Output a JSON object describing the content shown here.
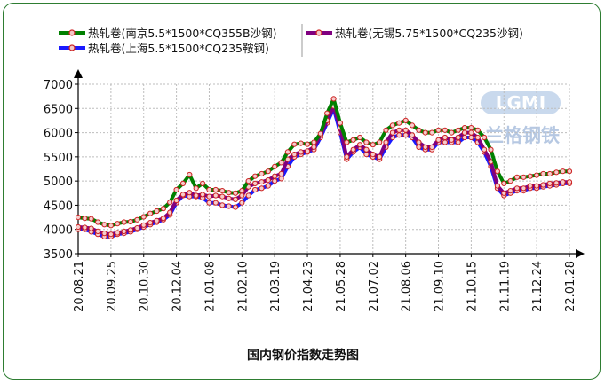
{
  "chart_data": {
    "type": "line",
    "title": "国内钢价指数走势图",
    "xlabel": "",
    "ylabel": "",
    "ylim": [
      3500,
      7000
    ],
    "yticks": [
      3500,
      4000,
      4500,
      5000,
      5500,
      6000,
      6500,
      7000
    ],
    "x_tick_labels": [
      "20.08.21",
      "20.09.25",
      "20.10.30",
      "20.12.04",
      "21.01.08",
      "21.02.10",
      "21.03.19",
      "21.04.23",
      "21.05.28",
      "21.07.02",
      "21.08.06",
      "21.09.10",
      "21.10.15",
      "21.11.19",
      "21.12.24",
      "22.01.28"
    ],
    "x_tick_index": [
      0,
      5,
      10,
      15,
      20,
      25,
      30,
      35,
      40,
      45,
      50,
      55,
      60,
      65,
      70,
      75
    ],
    "grid": true,
    "legend_position": "top",
    "series": [
      {
        "name": "热轧卷(南京5.5*1500*CQ355B沙钢)",
        "color": "#008000",
        "values": [
          4250,
          4230,
          4220,
          4150,
          4100,
          4080,
          4120,
          4150,
          4160,
          4200,
          4260,
          4330,
          4380,
          4430,
          4560,
          4820,
          4950,
          5130,
          4850,
          4950,
          4820,
          4820,
          4800,
          4760,
          4750,
          4800,
          5000,
          5100,
          5150,
          5200,
          5300,
          5380,
          5600,
          5760,
          5780,
          5760,
          5800,
          5980,
          6400,
          6700,
          6200,
          5800,
          5850,
          5900,
          5800,
          5750,
          5800,
          6050,
          6150,
          6200,
          6250,
          6150,
          6050,
          6000,
          6000,
          6050,
          6050,
          6000,
          6050,
          6100,
          6100,
          6050,
          5900,
          5650,
          5200,
          4950,
          5000,
          5080,
          5080,
          5100,
          5120,
          5150,
          5150,
          5180,
          5200,
          5200
        ]
      },
      {
        "name": "热轧卷(上海5.5*1500*CQ235鞍钢)",
        "color": "#1a1aff",
        "values": [
          4000,
          4000,
          3950,
          3900,
          3850,
          3850,
          3900,
          3920,
          3950,
          4000,
          4050,
          4100,
          4150,
          4200,
          4300,
          4550,
          4700,
          4680,
          4680,
          4650,
          4550,
          4550,
          4500,
          4480,
          4460,
          4550,
          4700,
          4820,
          4850,
          4900,
          5000,
          5050,
          5300,
          5500,
          5550,
          5600,
          5650,
          5900,
          6200,
          6500,
          6000,
          5450,
          5600,
          5700,
          5550,
          5500,
          5450,
          5700,
          5900,
          5950,
          5950,
          5900,
          5700,
          5650,
          5650,
          5800,
          5800,
          5800,
          5800,
          5900,
          5900,
          5800,
          5600,
          5300,
          4850,
          4700,
          4750,
          4800,
          4800,
          4850,
          4850,
          4880,
          4900,
          4920,
          4950,
          4950
        ]
      },
      {
        "name": "热轧卷(无锡5.75*1500*CQ235沙钢)",
        "color": "#800080",
        "values": [
          4050,
          4040,
          4020,
          3960,
          3920,
          3900,
          3930,
          3960,
          3990,
          4030,
          4090,
          4140,
          4180,
          4230,
          4350,
          4600,
          4720,
          4760,
          4700,
          4720,
          4680,
          4700,
          4680,
          4640,
          4620,
          4700,
          4880,
          4950,
          4980,
          5020,
          5100,
          5150,
          5450,
          5550,
          5600,
          5620,
          5700,
          5950,
          6250,
          6550,
          6100,
          5500,
          5650,
          5750,
          5650,
          5550,
          5500,
          5800,
          6000,
          6050,
          6050,
          5950,
          5800,
          5700,
          5700,
          5850,
          5900,
          5850,
          5900,
          6000,
          6000,
          5900,
          5650,
          5400,
          4900,
          4750,
          4800,
          4850,
          4850,
          4900,
          4900,
          4920,
          4950,
          4960,
          4980,
          4980
        ]
      }
    ]
  },
  "watermark": {
    "logo_text": "LGMI",
    "cn_text": "兰格钢铁"
  }
}
